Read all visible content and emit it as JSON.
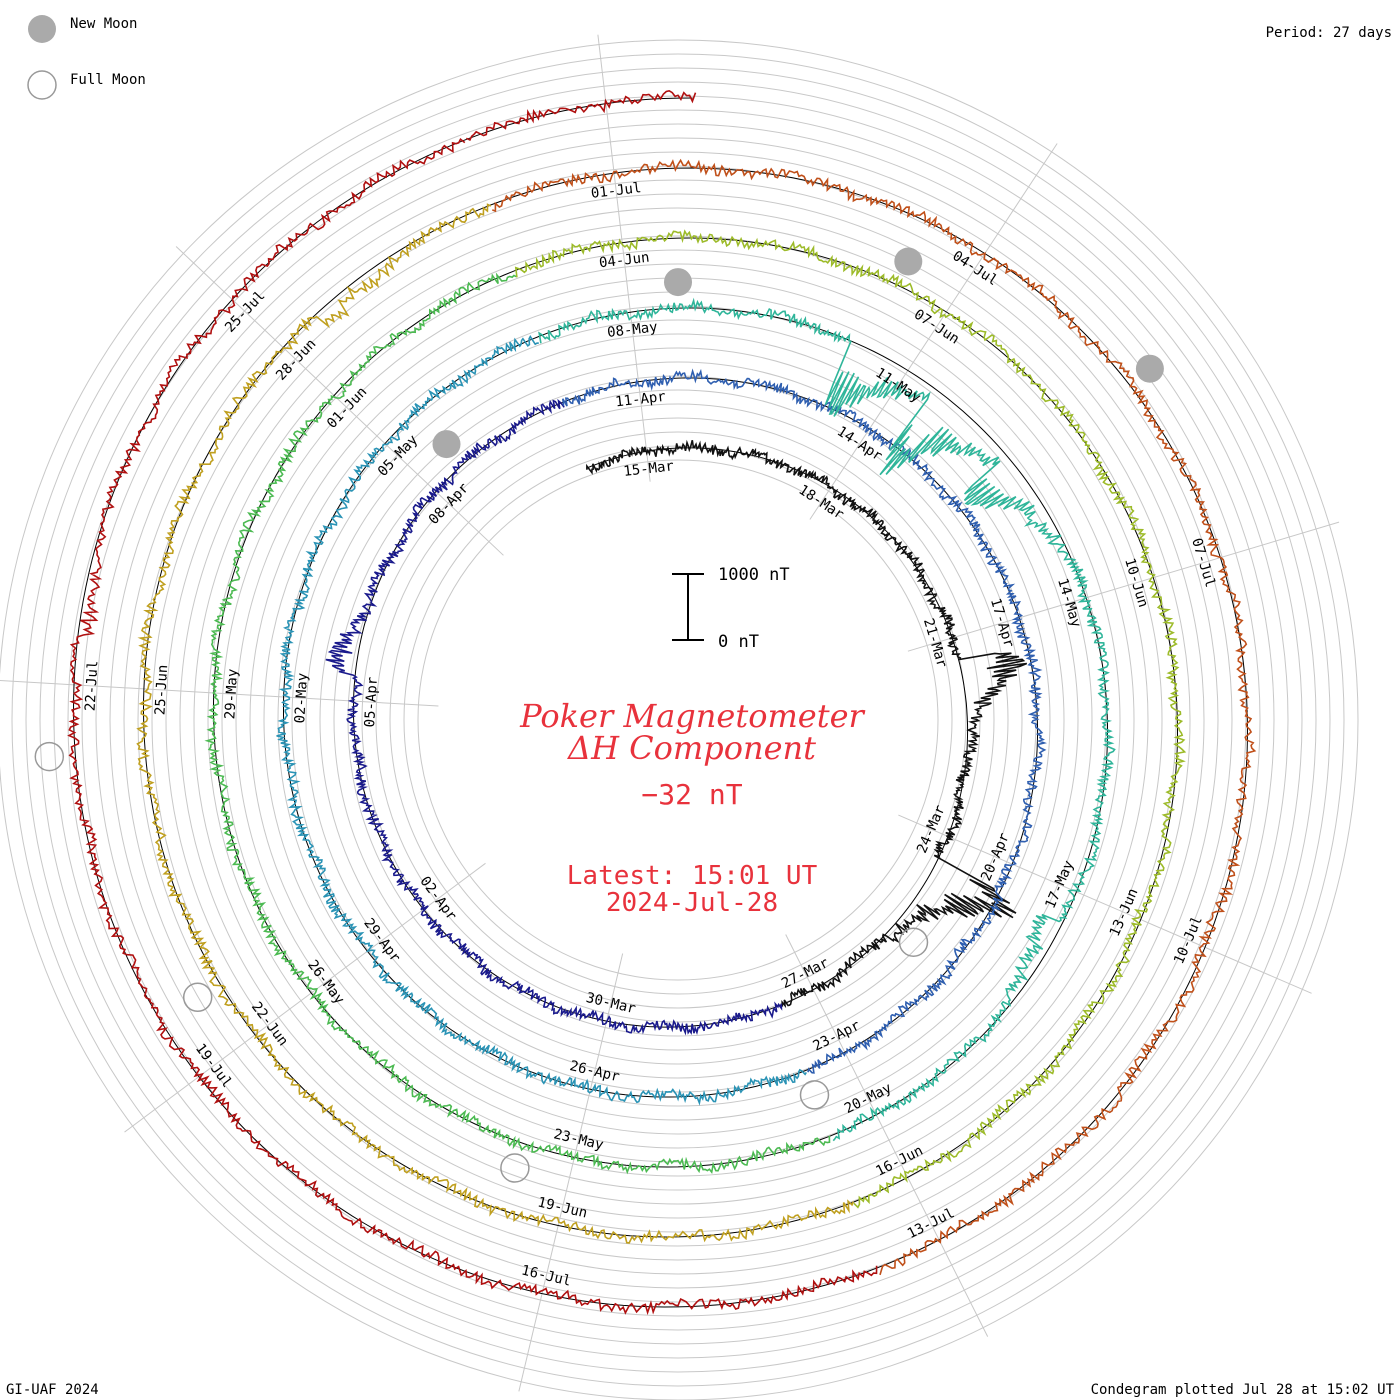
{
  "legend": {
    "new_moon": "New Moon",
    "full_moon": "Full Moon",
    "new_moon_color": "#aaaaaa",
    "full_moon_color": "#999999"
  },
  "period_label": "Period: 27 days",
  "title": {
    "line1": "Poker Magnetometer",
    "line2": "ΔH Component",
    "value": "−32 nT",
    "latest_time": "Latest: 15:01 UT",
    "latest_date": "2024-Jul-28",
    "color": "#e8323c"
  },
  "scale_bar": {
    "top_label": "1000 nT",
    "bottom_label": "0 nT"
  },
  "footer": {
    "left": "GI-UAF 2024",
    "right": "Condegram plotted Jul 28 at 15:02 UT"
  },
  "chart_data": {
    "type": "line",
    "title": "Poker Magnetometer ΔH Component",
    "period_days": 27,
    "start_date": "2024-03-14",
    "end_date": "2024-07-28",
    "units": "nT",
    "scale_bar_nT": [
      0,
      1000
    ],
    "grid": true,
    "rotation_labels": [
      [
        "15-Mar",
        "18-Mar",
        "21-Mar",
        "24-Mar",
        "27-Mar",
        "30-Mar",
        "02-Apr",
        "05-Apr",
        "08-Apr"
      ],
      [
        "11-Apr",
        "14-Apr",
        "17-Apr",
        "20-Apr",
        "23-Apr",
        "26-Apr",
        "29-Apr",
        "02-May",
        "05-May"
      ],
      [
        "08-May",
        "11-May",
        "14-May",
        "17-May",
        "20-May",
        "23-May",
        "26-May",
        "29-May",
        "01-Jun"
      ],
      [
        "04-Jun",
        "07-Jun",
        "10-Jun",
        "13-Jun",
        "16-Jun",
        "19-Jun",
        "22-Jun",
        "25-Jun",
        "28-Jun"
      ],
      [
        "01-Jul",
        "04-Jul",
        "07-Jul",
        "10-Jul",
        "13-Jul",
        "16-Jul",
        "19-Jul",
        "22-Jul",
        "25-Jul"
      ]
    ],
    "series_colors": [
      "#111111",
      "#1a1a8c",
      "#2f5fb0",
      "#2a93b5",
      "#2fb59a",
      "#4cba52",
      "#9dbb2a",
      "#c0a020",
      "#c0501a",
      "#b01010"
    ],
    "disturbances": [
      {
        "date": "2024-03-21",
        "delta_nT": -1100
      },
      {
        "date": "2024-03-24",
        "delta_nT": -1500
      },
      {
        "date": "2024-04-05",
        "delta_nT": -450
      },
      {
        "date": "2024-05-10",
        "delta_nT": 1300
      },
      {
        "date": "2024-05-11",
        "delta_nT": 1500
      },
      {
        "date": "2024-05-12",
        "delta_nT": 900
      },
      {
        "date": "2024-05-17",
        "delta_nT": 500
      },
      {
        "date": "2024-06-28",
        "delta_nT": 350
      },
      {
        "date": "2024-07-22",
        "delta_nT": 250
      }
    ],
    "new_moons": [
      "2024-04-08",
      "2024-05-08",
      "2024-06-06",
      "2024-07-05"
    ],
    "full_moons": [
      "2024-03-25",
      "2024-04-23",
      "2024-05-23",
      "2024-06-22",
      "2024-07-21"
    ]
  }
}
